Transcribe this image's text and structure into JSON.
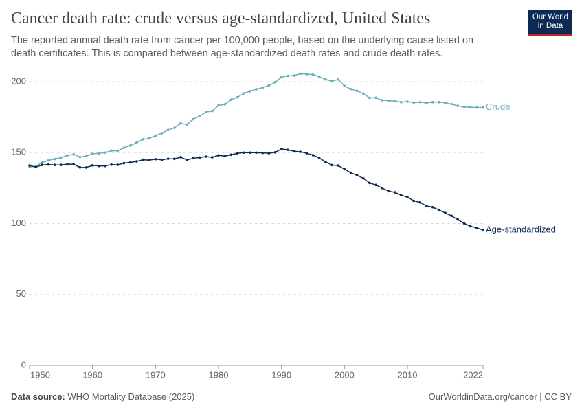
{
  "chart_data": {
    "type": "line",
    "title": "Cancer death rate: crude versus age-standardized, United States",
    "subtitle": "The reported annual death rate from cancer per 100,000 people, based on the underlying cause listed on death certificates. This is compared between age-standardized death rates and crude death rates.",
    "logo": [
      "Our World",
      "in Data"
    ],
    "source_label": "Data source:",
    "source": "WHO Mortality Database (2025)",
    "footer_right": "OurWorldinData.org/cancer | CC BY",
    "x": [
      1950,
      1951,
      1952,
      1953,
      1954,
      1955,
      1956,
      1957,
      1958,
      1959,
      1960,
      1961,
      1962,
      1963,
      1964,
      1965,
      1966,
      1967,
      1968,
      1969,
      1970,
      1971,
      1972,
      1973,
      1974,
      1975,
      1976,
      1977,
      1978,
      1979,
      1980,
      1981,
      1982,
      1983,
      1984,
      1985,
      1986,
      1987,
      1988,
      1989,
      1990,
      1991,
      1992,
      1993,
      1994,
      1995,
      1996,
      1997,
      1998,
      1999,
      2000,
      2001,
      2002,
      2003,
      2004,
      2005,
      2006,
      2007,
      2008,
      2009,
      2010,
      2011,
      2012,
      2013,
      2014,
      2015,
      2016,
      2017,
      2018,
      2019,
      2020,
      2021,
      2022
    ],
    "series": [
      {
        "name": "Crude",
        "color": "#6ab0b8",
        "values": [
          139.8,
          140.5,
          143,
          144.5,
          145.5,
          146.5,
          148,
          148.8,
          146.9,
          147.5,
          149.2,
          149.5,
          150,
          151.4,
          151.3,
          153.5,
          155,
          157,
          159.4,
          160,
          162,
          163.7,
          166,
          167.5,
          170.6,
          169.8,
          173.6,
          175.8,
          178.6,
          179.3,
          183.3,
          184,
          187.3,
          189,
          191.8,
          193.3,
          194.7,
          195.9,
          197.3,
          199.6,
          203.2,
          204.1,
          204.3,
          205.6,
          205.3,
          205,
          203.5,
          201.6,
          200.3,
          201.6,
          197,
          194.8,
          193.6,
          191.6,
          188.6,
          188.7,
          186.9,
          186.6,
          186.4,
          185.6,
          186,
          185.2,
          185.6,
          185,
          185.6,
          185.6,
          185.1,
          184.2,
          183,
          182.2,
          182,
          181.8,
          181.8
        ]
      },
      {
        "name": "Age-standardized",
        "color": "#0d2a52",
        "values": [
          140.9,
          139.8,
          141.3,
          141.6,
          141.3,
          141.3,
          141.8,
          141.8,
          139.6,
          139.5,
          141,
          140.6,
          140.6,
          141.5,
          141.4,
          142.6,
          143.1,
          143.8,
          145,
          144.7,
          145.4,
          144.9,
          145.7,
          145.6,
          146.8,
          144.8,
          146.1,
          146.5,
          147.2,
          146.7,
          148.1,
          147.5,
          148.5,
          149.5,
          150,
          150,
          150,
          149.8,
          149.6,
          150.2,
          152.6,
          152,
          151,
          150.6,
          149.6,
          148.2,
          146.2,
          143.5,
          141.2,
          140.9,
          138.3,
          135.8,
          134,
          131.9,
          128.6,
          127.2,
          125,
          122.8,
          122,
          120,
          118.6,
          116,
          114.9,
          112.4,
          111.5,
          109.6,
          107.5,
          105.4,
          102.8,
          100.1,
          98.1,
          96.9,
          95.4
        ]
      }
    ],
    "xlim": [
      1950,
      2022
    ],
    "xticks": [
      1950,
      1960,
      1970,
      1980,
      1990,
      2000,
      2010,
      2022
    ],
    "ylim": [
      0,
      200
    ],
    "yticks": [
      0,
      50,
      100,
      150,
      200
    ],
    "grid": true
  }
}
